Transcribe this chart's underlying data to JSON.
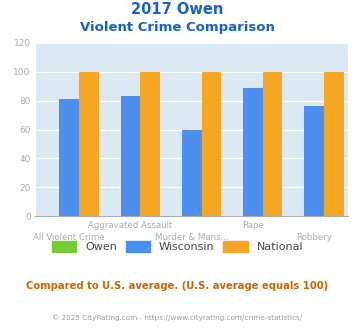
{
  "title_line1": "2017 Owen",
  "title_line2": "Violent Crime Comparison",
  "categories": [
    "All Violent Crime",
    "Aggravated Assault",
    "Murder & Mans...",
    "Rape",
    "Robbery"
  ],
  "x_top_labels": {
    "1": "Aggravated Assault",
    "3": "Rape"
  },
  "x_bot_labels": {
    "0": "All Violent Crime",
    "2": "Murder & Mans...",
    "4": "Robbery"
  },
  "series": {
    "Owen": [
      0,
      0,
      0,
      0,
      0
    ],
    "Wisconsin": [
      81,
      83,
      60,
      89,
      76
    ],
    "National": [
      100,
      100,
      100,
      100,
      100
    ]
  },
  "colors": {
    "Owen": "#77cc33",
    "Wisconsin": "#4d8fef",
    "National": "#f5a623"
  },
  "ylim": [
    0,
    120
  ],
  "yticks": [
    0,
    20,
    40,
    60,
    80,
    100,
    120
  ],
  "plot_bg_color": "#dbeaf2",
  "fig_bg_color": "#ffffff",
  "title_color": "#1a5fcc",
  "footer_text": "Compared to U.S. average. (U.S. average equals 100)",
  "footer_color": "#cc6600",
  "copyright_text": "© 2025 CityRating.com - https://www.cityrating.com/crime-statistics/",
  "copyright_color": "#999999",
  "grid_color": "#ffffff",
  "tick_color": "#aaaaaa",
  "bar_width": 0.32,
  "legend_labels": [
    "Owen",
    "Wisconsin",
    "National"
  ]
}
